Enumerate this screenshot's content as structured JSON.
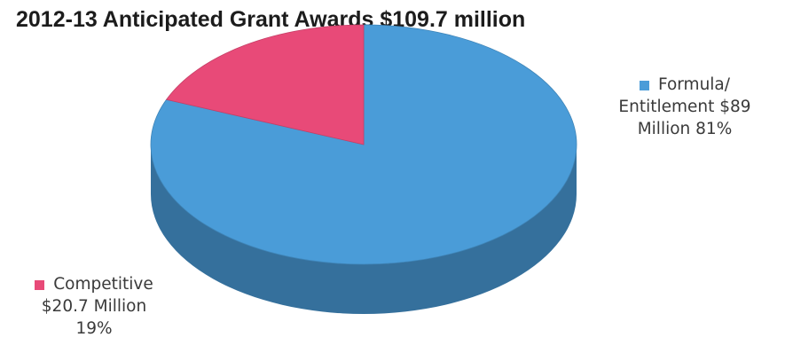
{
  "chart_data": {
    "type": "pie",
    "title": "2012-13 Anticipated Grant Awards $109.7 million",
    "slices": [
      {
        "label": "Formula/ Entitlement $89 Million 81%",
        "label_lines": [
          "Formula/",
          "Entitlement  $89",
          "Million 81%"
        ],
        "value": 89,
        "unit": "Million",
        "percent": 81,
        "color": "#4a9cd8"
      },
      {
        "label": "Competitive $20.7 Million 19%",
        "label_lines": [
          "Competitive",
          "$20.7 Million",
          "19%"
        ],
        "value": 20.7,
        "unit": "Million",
        "percent": 19,
        "color": "#e84a78"
      }
    ],
    "style": "3d",
    "legend": "labels beside slices"
  }
}
